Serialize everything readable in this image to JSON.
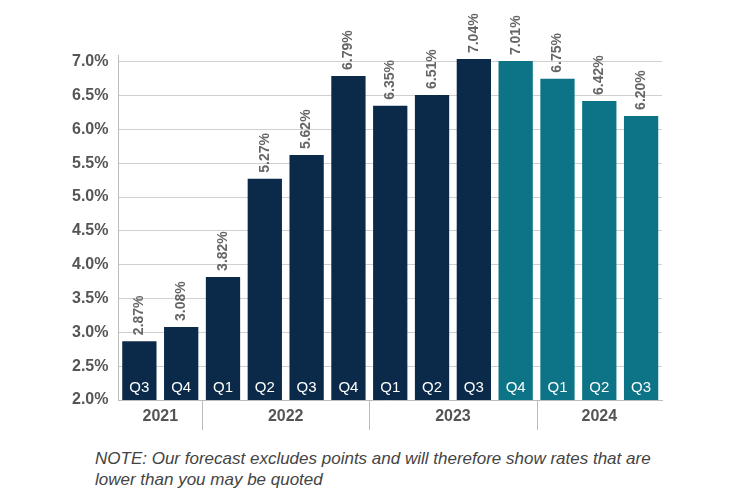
{
  "chart_data": {
    "type": "bar",
    "categories": [
      "Q3",
      "Q4",
      "Q1",
      "Q2",
      "Q3",
      "Q4",
      "Q1",
      "Q2",
      "Q3",
      "Q4",
      "Q1",
      "Q2",
      "Q3"
    ],
    "groups": [
      {
        "label": "2021",
        "count": 2
      },
      {
        "label": "2022",
        "count": 4
      },
      {
        "label": "2023",
        "count": 4
      },
      {
        "label": "2024",
        "count": 3
      }
    ],
    "values": [
      2.87,
      3.08,
      3.82,
      5.27,
      5.62,
      6.79,
      6.35,
      6.51,
      7.04,
      7.01,
      6.75,
      6.42,
      6.2
    ],
    "value_labels": [
      "2.87%",
      "3.08%",
      "3.82%",
      "5.27%",
      "5.62%",
      "6.79%",
      "6.35%",
      "6.51%",
      "7.04%",
      "7.01%",
      "6.75%",
      "6.42%",
      "6.20%"
    ],
    "colors": [
      "#0b2a4a",
      "#0b2a4a",
      "#0b2a4a",
      "#0b2a4a",
      "#0b2a4a",
      "#0b2a4a",
      "#0b2a4a",
      "#0b2a4a",
      "#0b2a4a",
      "#0c7486",
      "#0c7486",
      "#0c7486",
      "#0c7486"
    ],
    "data_labels": true,
    "ylim": [
      2.0,
      7.1
    ],
    "yticks": [
      {
        "value": 2.0,
        "label": "2.0%"
      },
      {
        "value": 2.5,
        "label": "2.5%"
      },
      {
        "value": 3.0,
        "label": "3.0%"
      },
      {
        "value": 3.5,
        "label": "3.5%"
      },
      {
        "value": 4.0,
        "label": "4.0%"
      },
      {
        "value": 4.5,
        "label": "4.5%"
      },
      {
        "value": 5.0,
        "label": "5.0%"
      },
      {
        "value": 5.5,
        "label": "5.5%"
      },
      {
        "value": 6.0,
        "label": "6.0%"
      },
      {
        "value": 6.5,
        "label": "6.5%"
      },
      {
        "value": 7.0,
        "label": "7.0%"
      }
    ],
    "grid": true,
    "note": "NOTE: Our forecast excludes points and will therefore show rates that are lower than you may be quoted"
  }
}
